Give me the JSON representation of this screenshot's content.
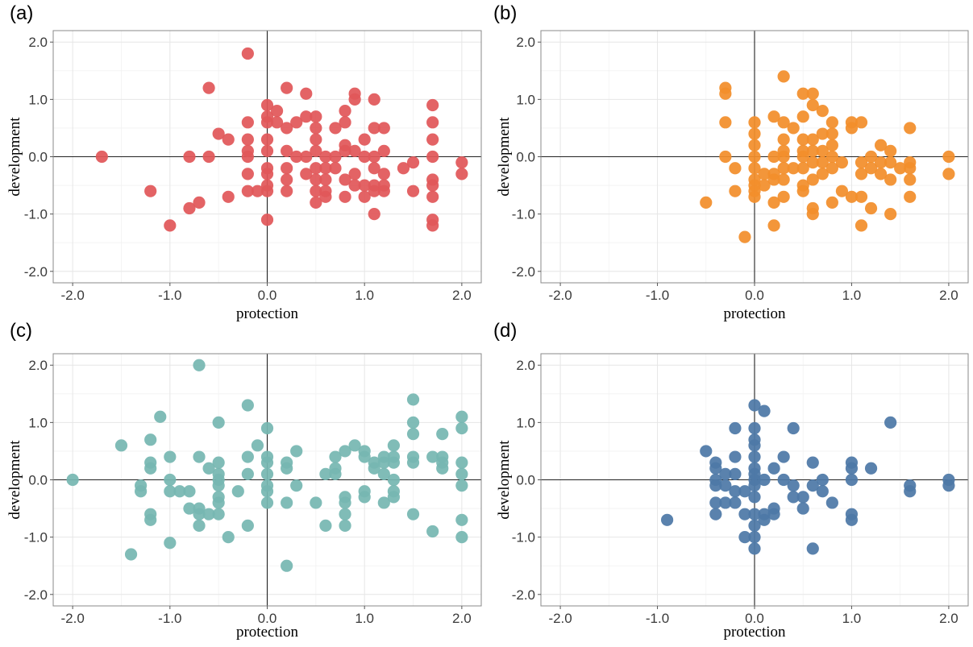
{
  "chart_data": [
    {
      "panel": "(a)",
      "type": "scatter",
      "xlabel": "protection",
      "ylabel": "development",
      "xlim": [
        -2.2,
        2.2
      ],
      "ylim": [
        -2.2,
        2.2
      ],
      "xticks": [
        "-2.0",
        "-1.0",
        "0.0",
        "1.0",
        "2.0"
      ],
      "yticks": [
        "-2.0",
        "-1.0",
        "0.0",
        "1.0",
        "2.0"
      ],
      "grid": true,
      "color": "#e15759",
      "points": [
        [
          -1.7,
          0
        ],
        [
          -1.2,
          -0.6
        ],
        [
          -1.0,
          -1.2
        ],
        [
          -0.8,
          -0.9
        ],
        [
          -0.8,
          0
        ],
        [
          -0.7,
          -0.8
        ],
        [
          -0.6,
          1.2
        ],
        [
          -0.6,
          0
        ],
        [
          -0.5,
          0.4
        ],
        [
          -0.4,
          0.3
        ],
        [
          -0.4,
          -0.7
        ],
        [
          -0.2,
          1.8
        ],
        [
          -0.2,
          0.6
        ],
        [
          -0.2,
          0.3
        ],
        [
          -0.2,
          0.1
        ],
        [
          -0.2,
          0
        ],
        [
          -0.2,
          -0.3
        ],
        [
          -0.2,
          -0.6
        ],
        [
          -0.1,
          -0.6
        ],
        [
          0,
          0.9
        ],
        [
          0,
          0.7
        ],
        [
          0,
          0.6
        ],
        [
          0,
          0.3
        ],
        [
          0,
          0.1
        ],
        [
          0,
          -0.2
        ],
        [
          0,
          -0.3
        ],
        [
          0,
          -0.5
        ],
        [
          0,
          -0.6
        ],
        [
          0,
          -1.1
        ],
        [
          0.1,
          0.8
        ],
        [
          0.1,
          0.6
        ],
        [
          0.2,
          1.2
        ],
        [
          0.2,
          0.5
        ],
        [
          0.2,
          0.1
        ],
        [
          0.2,
          -0.2
        ],
        [
          0.2,
          -0.4
        ],
        [
          0.2,
          -0.6
        ],
        [
          0.3,
          0.6
        ],
        [
          0.3,
          0
        ],
        [
          0.4,
          1.1
        ],
        [
          0.4,
          0.7
        ],
        [
          0.4,
          0
        ],
        [
          0.4,
          -0.3
        ],
        [
          0.5,
          0.7
        ],
        [
          0.5,
          0.5
        ],
        [
          0.5,
          0.3
        ],
        [
          0.5,
          0.1
        ],
        [
          0.5,
          -0.2
        ],
        [
          0.5,
          -0.4
        ],
        [
          0.5,
          -0.6
        ],
        [
          0.5,
          -0.8
        ],
        [
          0.6,
          0
        ],
        [
          0.6,
          -0.2
        ],
        [
          0.6,
          -0.4
        ],
        [
          0.6,
          -0.6
        ],
        [
          0.6,
          -0.7
        ],
        [
          0.7,
          0.5
        ],
        [
          0.7,
          0
        ],
        [
          0.7,
          -0.2
        ],
        [
          0.8,
          0.8
        ],
        [
          0.8,
          0.6
        ],
        [
          0.8,
          0.2
        ],
        [
          0.8,
          0.1
        ],
        [
          0.8,
          -0.4
        ],
        [
          0.8,
          -0.7
        ],
        [
          0.9,
          1.1
        ],
        [
          0.9,
          1.0
        ],
        [
          0.9,
          0.1
        ],
        [
          0.9,
          -0.3
        ],
        [
          0.9,
          -0.5
        ],
        [
          1.0,
          0.3
        ],
        [
          1.0,
          0
        ],
        [
          1.0,
          -0.5
        ],
        [
          1.0,
          -0.7
        ],
        [
          1.1,
          1.0
        ],
        [
          1.1,
          0.5
        ],
        [
          1.1,
          0
        ],
        [
          1.1,
          -0.2
        ],
        [
          1.1,
          -0.5
        ],
        [
          1.1,
          -0.6
        ],
        [
          1.1,
          -1.0
        ],
        [
          1.2,
          0.5
        ],
        [
          1.2,
          0.1
        ],
        [
          1.2,
          -0.3
        ],
        [
          1.2,
          -0.5
        ],
        [
          1.2,
          -0.6
        ],
        [
          1.4,
          -0.2
        ],
        [
          1.5,
          -0.1
        ],
        [
          1.5,
          -0.6
        ],
        [
          1.7,
          0.9
        ],
        [
          1.7,
          0.6
        ],
        [
          1.7,
          0.3
        ],
        [
          1.7,
          0
        ],
        [
          1.7,
          -0.4
        ],
        [
          1.7,
          -0.5
        ],
        [
          1.7,
          -0.7
        ],
        [
          1.7,
          -1.1
        ],
        [
          1.7,
          -1.2
        ],
        [
          2.0,
          -0.1
        ],
        [
          2.0,
          -0.3
        ]
      ]
    },
    {
      "panel": "(b)",
      "type": "scatter",
      "xlabel": "protection",
      "ylabel": "development",
      "xlim": [
        -2.2,
        2.2
      ],
      "ylim": [
        -2.2,
        2.2
      ],
      "xticks": [
        "-2.0",
        "-1.0",
        "0.0",
        "1.0",
        "2.0"
      ],
      "yticks": [
        "-2.0",
        "-1.0",
        "0.0",
        "1.0",
        "2.0"
      ],
      "grid": true,
      "color": "#f28e2b",
      "points": [
        [
          -0.5,
          -0.8
        ],
        [
          -0.3,
          1.2
        ],
        [
          -0.3,
          1.1
        ],
        [
          -0.3,
          0.6
        ],
        [
          -0.3,
          0
        ],
        [
          -0.2,
          -0.2
        ],
        [
          -0.2,
          -0.6
        ],
        [
          -0.1,
          -1.4
        ],
        [
          0,
          0.6
        ],
        [
          0,
          0.4
        ],
        [
          0,
          0.2
        ],
        [
          0,
          0
        ],
        [
          0,
          -0.2
        ],
        [
          0,
          -0.4
        ],
        [
          0,
          -0.5
        ],
        [
          0,
          -0.6
        ],
        [
          0,
          -0.7
        ],
        [
          0.1,
          -0.3
        ],
        [
          0.1,
          -0.5
        ],
        [
          0.2,
          0.7
        ],
        [
          0.2,
          0
        ],
        [
          0.2,
          -0.3
        ],
        [
          0.2,
          -0.4
        ],
        [
          0.2,
          -0.8
        ],
        [
          0.2,
          -1.2
        ],
        [
          0.3,
          1.4
        ],
        [
          0.3,
          0.6
        ],
        [
          0.3,
          0.3
        ],
        [
          0.3,
          0.1
        ],
        [
          0.3,
          0
        ],
        [
          0.3,
          -0.2
        ],
        [
          0.3,
          -0.4
        ],
        [
          0.3,
          -0.7
        ],
        [
          0.4,
          0.5
        ],
        [
          0.4,
          -0.2
        ],
        [
          0.5,
          1.1
        ],
        [
          0.5,
          0.7
        ],
        [
          0.5,
          0.3
        ],
        [
          0.5,
          0.1
        ],
        [
          0.5,
          0
        ],
        [
          0.5,
          -0.2
        ],
        [
          0.5,
          -0.5
        ],
        [
          0.5,
          -0.6
        ],
        [
          0.6,
          1.1
        ],
        [
          0.6,
          0.9
        ],
        [
          0.6,
          0.3
        ],
        [
          0.6,
          0.1
        ],
        [
          0.6,
          -0.1
        ],
        [
          0.6,
          -0.4
        ],
        [
          0.6,
          -0.9
        ],
        [
          0.6,
          -1.0
        ],
        [
          0.7,
          0.8
        ],
        [
          0.7,
          0.4
        ],
        [
          0.7,
          0.1
        ],
        [
          0.7,
          -0.1
        ],
        [
          0.7,
          -0.3
        ],
        [
          0.8,
          0.6
        ],
        [
          0.8,
          0.4
        ],
        [
          0.8,
          0.2
        ],
        [
          0.8,
          0
        ],
        [
          0.8,
          -0.2
        ],
        [
          0.8,
          -0.8
        ],
        [
          0.9,
          -0.1
        ],
        [
          0.9,
          -0.6
        ],
        [
          1.0,
          0.6
        ],
        [
          1.0,
          0.5
        ],
        [
          1.0,
          -0.7
        ],
        [
          1.1,
          0.6
        ],
        [
          1.1,
          -0.1
        ],
        [
          1.1,
          -0.3
        ],
        [
          1.1,
          -0.7
        ],
        [
          1.1,
          -1.2
        ],
        [
          1.2,
          0
        ],
        [
          1.2,
          -0.2
        ],
        [
          1.2,
          -0.9
        ],
        [
          1.3,
          0.2
        ],
        [
          1.3,
          -0.1
        ],
        [
          1.3,
          -0.3
        ],
        [
          1.4,
          0.1
        ],
        [
          1.4,
          -0.1
        ],
        [
          1.4,
          -0.4
        ],
        [
          1.4,
          -1.0
        ],
        [
          1.5,
          -0.2
        ],
        [
          1.6,
          0.5
        ],
        [
          1.6,
          -0.1
        ],
        [
          1.6,
          -0.2
        ],
        [
          1.6,
          -0.4
        ],
        [
          1.6,
          -0.7
        ],
        [
          2.0,
          0
        ],
        [
          2.0,
          -0.3
        ]
      ]
    },
    {
      "panel": "(c)",
      "type": "scatter",
      "xlabel": "protection",
      "ylabel": "development",
      "xlim": [
        -2.2,
        2.2
      ],
      "ylim": [
        -2.2,
        2.2
      ],
      "xticks": [
        "-2.0",
        "-1.0",
        "0.0",
        "1.0",
        "2.0"
      ],
      "yticks": [
        "-2.0",
        "-1.0",
        "0.0",
        "1.0",
        "2.0"
      ],
      "grid": true,
      "color": "#76b7b2",
      "points": [
        [
          -2.0,
          0
        ],
        [
          -1.5,
          0.6
        ],
        [
          -1.4,
          -1.3
        ],
        [
          -1.3,
          -0.1
        ],
        [
          -1.3,
          -0.2
        ],
        [
          -1.2,
          0.7
        ],
        [
          -1.2,
          0.3
        ],
        [
          -1.2,
          0.2
        ],
        [
          -1.2,
          -0.6
        ],
        [
          -1.2,
          -0.7
        ],
        [
          -1.1,
          1.1
        ],
        [
          -1.0,
          0.4
        ],
        [
          -1.0,
          0
        ],
        [
          -1.0,
          -0.2
        ],
        [
          -1.0,
          -1.1
        ],
        [
          -0.9,
          -0.2
        ],
        [
          -0.8,
          -0.2
        ],
        [
          -0.8,
          -0.5
        ],
        [
          -0.7,
          2.0
        ],
        [
          -0.7,
          0.4
        ],
        [
          -0.7,
          -0.5
        ],
        [
          -0.7,
          -0.6
        ],
        [
          -0.7,
          -0.8
        ],
        [
          -0.6,
          0.2
        ],
        [
          -0.6,
          -0.6
        ],
        [
          -0.5,
          1.0
        ],
        [
          -0.5,
          0.3
        ],
        [
          -0.5,
          0.1
        ],
        [
          -0.5,
          0
        ],
        [
          -0.5,
          -0.1
        ],
        [
          -0.5,
          -0.3
        ],
        [
          -0.5,
          -0.4
        ],
        [
          -0.5,
          -0.6
        ],
        [
          -0.4,
          -1.0
        ],
        [
          -0.3,
          -0.2
        ],
        [
          -0.2,
          1.3
        ],
        [
          -0.2,
          0.4
        ],
        [
          -0.2,
          0.1
        ],
        [
          -0.2,
          -0.8
        ],
        [
          -0.1,
          0.6
        ],
        [
          0,
          0.9
        ],
        [
          0,
          0.4
        ],
        [
          0,
          0.3
        ],
        [
          0,
          0.1
        ],
        [
          0,
          -0.1
        ],
        [
          0,
          -0.2
        ],
        [
          0,
          -0.4
        ],
        [
          0.2,
          0.3
        ],
        [
          0.2,
          0.2
        ],
        [
          0.2,
          -0.4
        ],
        [
          0.2,
          -1.5
        ],
        [
          0.3,
          0.5
        ],
        [
          0.3,
          -0.1
        ],
        [
          0.5,
          -0.4
        ],
        [
          0.6,
          0.1
        ],
        [
          0.6,
          -0.8
        ],
        [
          0.7,
          0.4
        ],
        [
          0.7,
          0.2
        ],
        [
          0.7,
          0.1
        ],
        [
          0.8,
          0.5
        ],
        [
          0.8,
          -0.3
        ],
        [
          0.8,
          -0.4
        ],
        [
          0.8,
          -0.6
        ],
        [
          0.8,
          -0.8
        ],
        [
          0.9,
          0.6
        ],
        [
          1.0,
          0.5
        ],
        [
          1.0,
          0.4
        ],
        [
          1.0,
          -0.2
        ],
        [
          1.0,
          -0.3
        ],
        [
          1.1,
          0.3
        ],
        [
          1.1,
          0.2
        ],
        [
          1.2,
          0.4
        ],
        [
          1.2,
          0.3
        ],
        [
          1.2,
          0.1
        ],
        [
          1.2,
          -0.4
        ],
        [
          1.3,
          0.6
        ],
        [
          1.3,
          0.4
        ],
        [
          1.3,
          0.3
        ],
        [
          1.3,
          0
        ],
        [
          1.3,
          -0.2
        ],
        [
          1.3,
          -0.3
        ],
        [
          1.5,
          1.4
        ],
        [
          1.5,
          1.0
        ],
        [
          1.5,
          0.8
        ],
        [
          1.5,
          0.4
        ],
        [
          1.5,
          0.3
        ],
        [
          1.5,
          -0.6
        ],
        [
          1.7,
          0.4
        ],
        [
          1.7,
          -0.9
        ],
        [
          1.8,
          0.8
        ],
        [
          1.8,
          0.4
        ],
        [
          1.8,
          0.3
        ],
        [
          1.8,
          0.2
        ],
        [
          2.0,
          1.1
        ],
        [
          2.0,
          0.9
        ],
        [
          2.0,
          0.3
        ],
        [
          2.0,
          0.1
        ],
        [
          2.0,
          -0.1
        ],
        [
          2.0,
          -0.7
        ],
        [
          2.0,
          -1.0
        ]
      ]
    },
    {
      "panel": "(d)",
      "type": "scatter",
      "xlabel": "protection",
      "ylabel": "development",
      "xlim": [
        -2.2,
        2.2
      ],
      "ylim": [
        -2.2,
        2.2
      ],
      "xticks": [
        "-2.0",
        "-1.0",
        "0.0",
        "1.0",
        "2.0"
      ],
      "yticks": [
        "-2.0",
        "-1.0",
        "0.0",
        "1.0",
        "2.0"
      ],
      "grid": true,
      "color": "#4e79a7",
      "points": [
        [
          -0.9,
          -0.7
        ],
        [
          -0.5,
          0.5
        ],
        [
          -0.4,
          0.3
        ],
        [
          -0.4,
          0.2
        ],
        [
          -0.4,
          0
        ],
        [
          -0.4,
          -0.1
        ],
        [
          -0.4,
          -0.4
        ],
        [
          -0.4,
          -0.6
        ],
        [
          -0.3,
          0.1
        ],
        [
          -0.3,
          -0.1
        ],
        [
          -0.3,
          -0.4
        ],
        [
          -0.2,
          0.9
        ],
        [
          -0.2,
          0.4
        ],
        [
          -0.2,
          0.1
        ],
        [
          -0.2,
          -0.2
        ],
        [
          -0.2,
          -0.4
        ],
        [
          -0.1,
          -0.2
        ],
        [
          -0.1,
          -0.6
        ],
        [
          -0.1,
          -1.0
        ],
        [
          0,
          1.3
        ],
        [
          0,
          0.9
        ],
        [
          0,
          0.7
        ],
        [
          0,
          0.6
        ],
        [
          0,
          0.4
        ],
        [
          0,
          0.2
        ],
        [
          0,
          0.1
        ],
        [
          0,
          0
        ],
        [
          0,
          -0.1
        ],
        [
          0,
          -0.3
        ],
        [
          0,
          -0.6
        ],
        [
          0,
          -0.8
        ],
        [
          0,
          -1.0
        ],
        [
          0,
          -1.2
        ],
        [
          0.1,
          1.2
        ],
        [
          0.1,
          0
        ],
        [
          0.1,
          -0.6
        ],
        [
          0.1,
          -0.7
        ],
        [
          0.2,
          0.2
        ],
        [
          0.2,
          -0.5
        ],
        [
          0.2,
          -0.6
        ],
        [
          0.3,
          0.4
        ],
        [
          0.3,
          0
        ],
        [
          0.4,
          0.9
        ],
        [
          0.4,
          -0.1
        ],
        [
          0.4,
          -0.3
        ],
        [
          0.5,
          -0.3
        ],
        [
          0.5,
          -0.5
        ],
        [
          0.6,
          0.3
        ],
        [
          0.6,
          -0.1
        ],
        [
          0.6,
          -1.2
        ],
        [
          0.7,
          0
        ],
        [
          0.7,
          -0.2
        ],
        [
          0.8,
          -0.4
        ],
        [
          1.0,
          0.3
        ],
        [
          1.0,
          0.2
        ],
        [
          1.0,
          0
        ],
        [
          1.0,
          -0.6
        ],
        [
          1.0,
          -0.7
        ],
        [
          1.2,
          0.2
        ],
        [
          1.4,
          1.0
        ],
        [
          1.6,
          -0.1
        ],
        [
          1.6,
          -0.2
        ],
        [
          2.0,
          0
        ],
        [
          2.0,
          -0.1
        ]
      ]
    }
  ]
}
